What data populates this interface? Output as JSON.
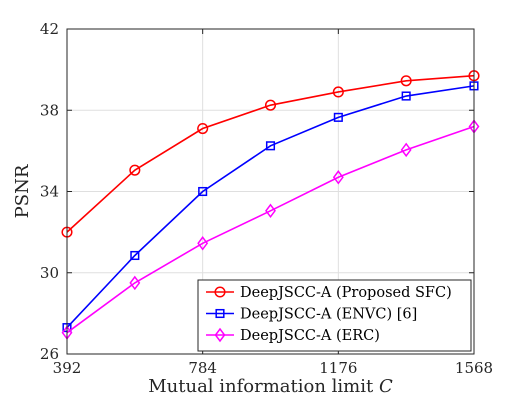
{
  "chart_data": {
    "type": "line",
    "xlabel": "Mutual information limit",
    "xlabel_var": "C",
    "ylabel": "PSNR",
    "xlim": [
      392,
      1568
    ],
    "ylim": [
      26,
      42
    ],
    "xticks": [
      392,
      784,
      1176,
      1568
    ],
    "yticks": [
      26,
      30,
      34,
      38,
      42
    ],
    "grid": true,
    "legend_position": "lower-right",
    "x": [
      392,
      588,
      784,
      980,
      1176,
      1372,
      1568
    ],
    "series": [
      {
        "name": "DeepJSCC-A (Proposed SFC)",
        "color": "#ff0000",
        "marker": "circle",
        "values": [
          32.0,
          35.05,
          37.1,
          38.25,
          38.9,
          39.45,
          39.7
        ]
      },
      {
        "name": "DeepJSCC-A (ENVC) [6]",
        "color": "#0000ff",
        "marker": "square",
        "values": [
          27.3,
          30.85,
          34.0,
          36.25,
          37.65,
          38.7,
          39.2
        ]
      },
      {
        "name": "DeepJSCC-A (ERC)",
        "color": "#ff00ff",
        "marker": "diamond",
        "values": [
          27.05,
          29.5,
          31.45,
          33.05,
          34.7,
          36.05,
          37.2
        ]
      }
    ]
  }
}
